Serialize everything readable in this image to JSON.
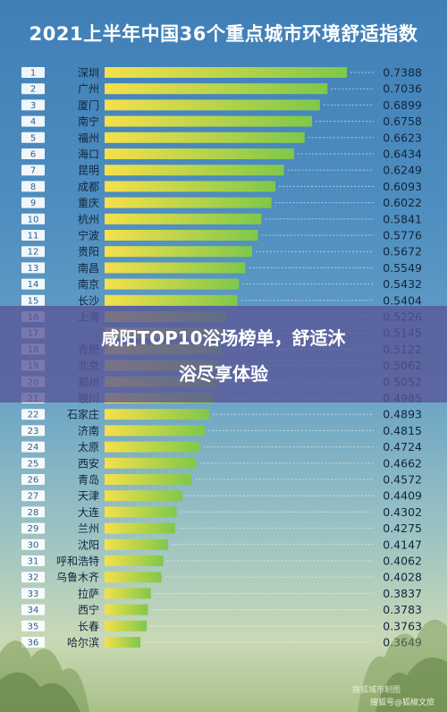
{
  "chart_data": {
    "type": "bar",
    "title": "2021上半年中国36个重点城市环境舒适指数",
    "ranks": [
      "1",
      "2",
      "3",
      "4",
      "5",
      "6",
      "7",
      "8",
      "9",
      "10",
      "11",
      "12",
      "13",
      "14",
      "15",
      "16",
      "17",
      "18",
      "19",
      "20",
      "21",
      "22",
      "23",
      "24",
      "25",
      "26",
      "27",
      "28",
      "29",
      "30",
      "31",
      "32",
      "33",
      "34",
      "35",
      "36"
    ],
    "categories": [
      "深圳",
      "广州",
      "厦门",
      "南宁",
      "福州",
      "海口",
      "昆明",
      "成都",
      "重庆",
      "杭州",
      "宁波",
      "贵阳",
      "南昌",
      "南京",
      "长沙",
      "上海",
      "",
      "合肥",
      "北京",
      "郑州",
      "银川",
      "石家庄",
      "济南",
      "太原",
      "西安",
      "青岛",
      "天津",
      "大连",
      "兰州",
      "沈阳",
      "呼和浩特",
      "乌鲁木齐",
      "拉萨",
      "西宁",
      "长春",
      "哈尔滨"
    ],
    "values": [
      0.7388,
      0.7036,
      0.6899,
      0.6758,
      0.6623,
      0.6434,
      0.6249,
      0.6093,
      0.6022,
      0.5841,
      0.5776,
      0.5672,
      0.5549,
      0.5432,
      0.5404,
      0.5226,
      0.5145,
      0.5122,
      0.5062,
      0.5052,
      0.4985,
      0.4893,
      0.4815,
      0.4724,
      0.4662,
      0.4572,
      0.4409,
      0.4302,
      0.4275,
      0.4147,
      0.4062,
      0.4028,
      0.3837,
      0.3783,
      0.3763,
      0.3649
    ],
    "value_labels": [
      "0.7388",
      "0.7036",
      "0.6899",
      "0.6758",
      "0.6623",
      "0.6434",
      "0.6249",
      "0.6093",
      "0.6022",
      "0.5841",
      "0.5776",
      "0.5672",
      "0.5549",
      "0.5432",
      "0.5404",
      "0.5226",
      "0.5145",
      "0.5122",
      "0.5062",
      "0.5052",
      "0.4985",
      "0.4893",
      "0.4815",
      "0.4724",
      "0.4662",
      "0.4572",
      "0.4409",
      "0.4302",
      "0.4275",
      "0.4147",
      "0.4062",
      "0.4028",
      "0.3837",
      "0.3783",
      "0.3763",
      "0.3649"
    ],
    "xlim": [
      0.3,
      0.75
    ],
    "colors": {
      "bar_start": "#f6e04a",
      "bar_end": "#7fc84a"
    }
  },
  "overlay": {
    "line1": "咸阳TOP10浴场榜单，舒适沐",
    "line2": "浴尽享体验"
  },
  "watermarks": {
    "line1": "搜狐城市制图",
    "line2": "搜狐号@狐椒文旅"
  }
}
